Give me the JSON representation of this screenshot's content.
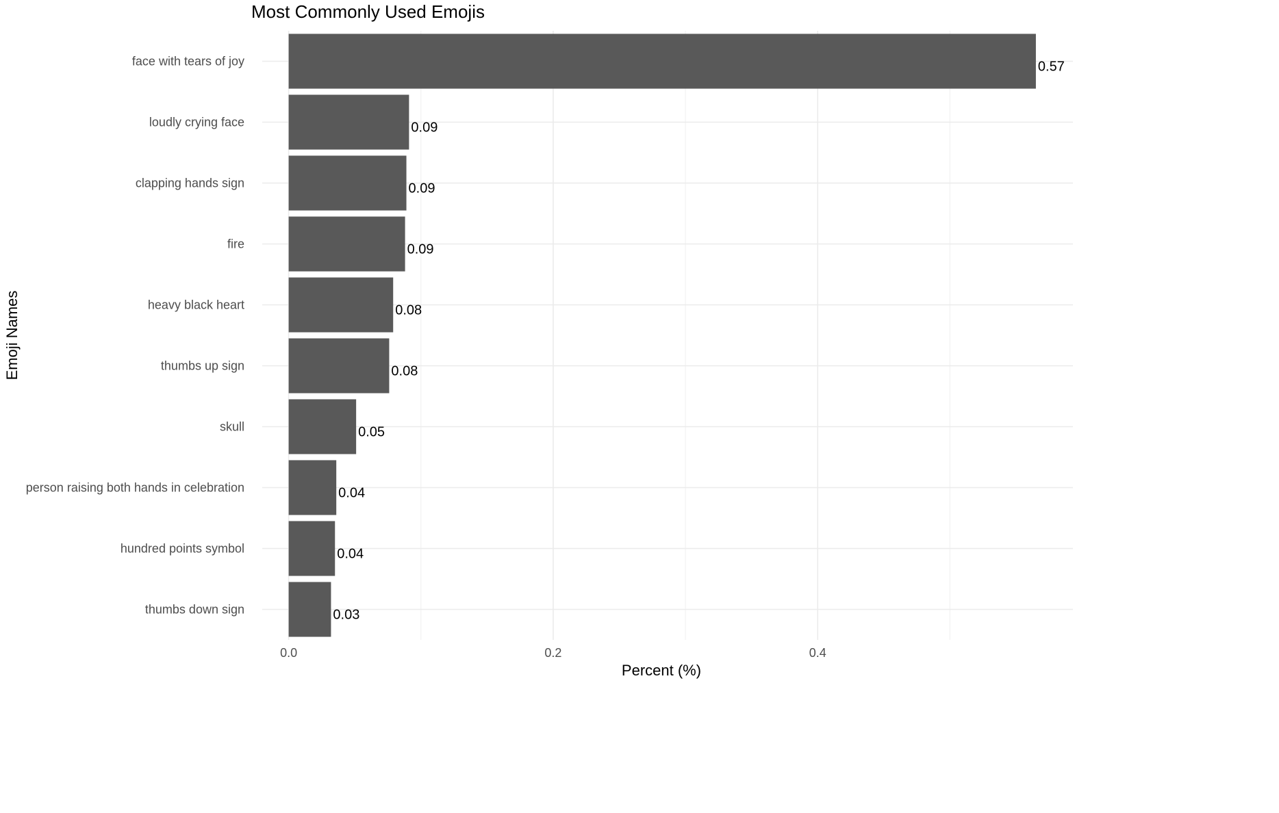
{
  "chart_data": {
    "type": "bar",
    "orientation": "horizontal",
    "title": "Most Commonly Used Emojis",
    "xlabel": "Percent (%)",
    "ylabel": "Emoji Names",
    "categories": [
      "face with tears of joy",
      "loudly crying face",
      "clapping hands sign",
      "fire",
      "heavy black heart",
      "thumbs up sign",
      "skull",
      "person raising both hands in celebration",
      "hundred points symbol",
      "thumbs down sign"
    ],
    "values": [
      0.565,
      0.091,
      0.089,
      0.088,
      0.079,
      0.076,
      0.051,
      0.036,
      0.035,
      0.032
    ],
    "value_labels": [
      "0.57",
      "0.09",
      "0.09",
      "0.09",
      "0.08",
      "0.08",
      "0.05",
      "0.04",
      "0.04",
      "0.03"
    ],
    "x_ticks": [
      0.0,
      0.2,
      0.4
    ],
    "x_tick_labels": [
      "0.0",
      "0.2",
      "0.4"
    ],
    "xlim": [
      -0.02,
      0.593
    ],
    "bar_color": "#595959",
    "grid": true,
    "legend": "none"
  }
}
